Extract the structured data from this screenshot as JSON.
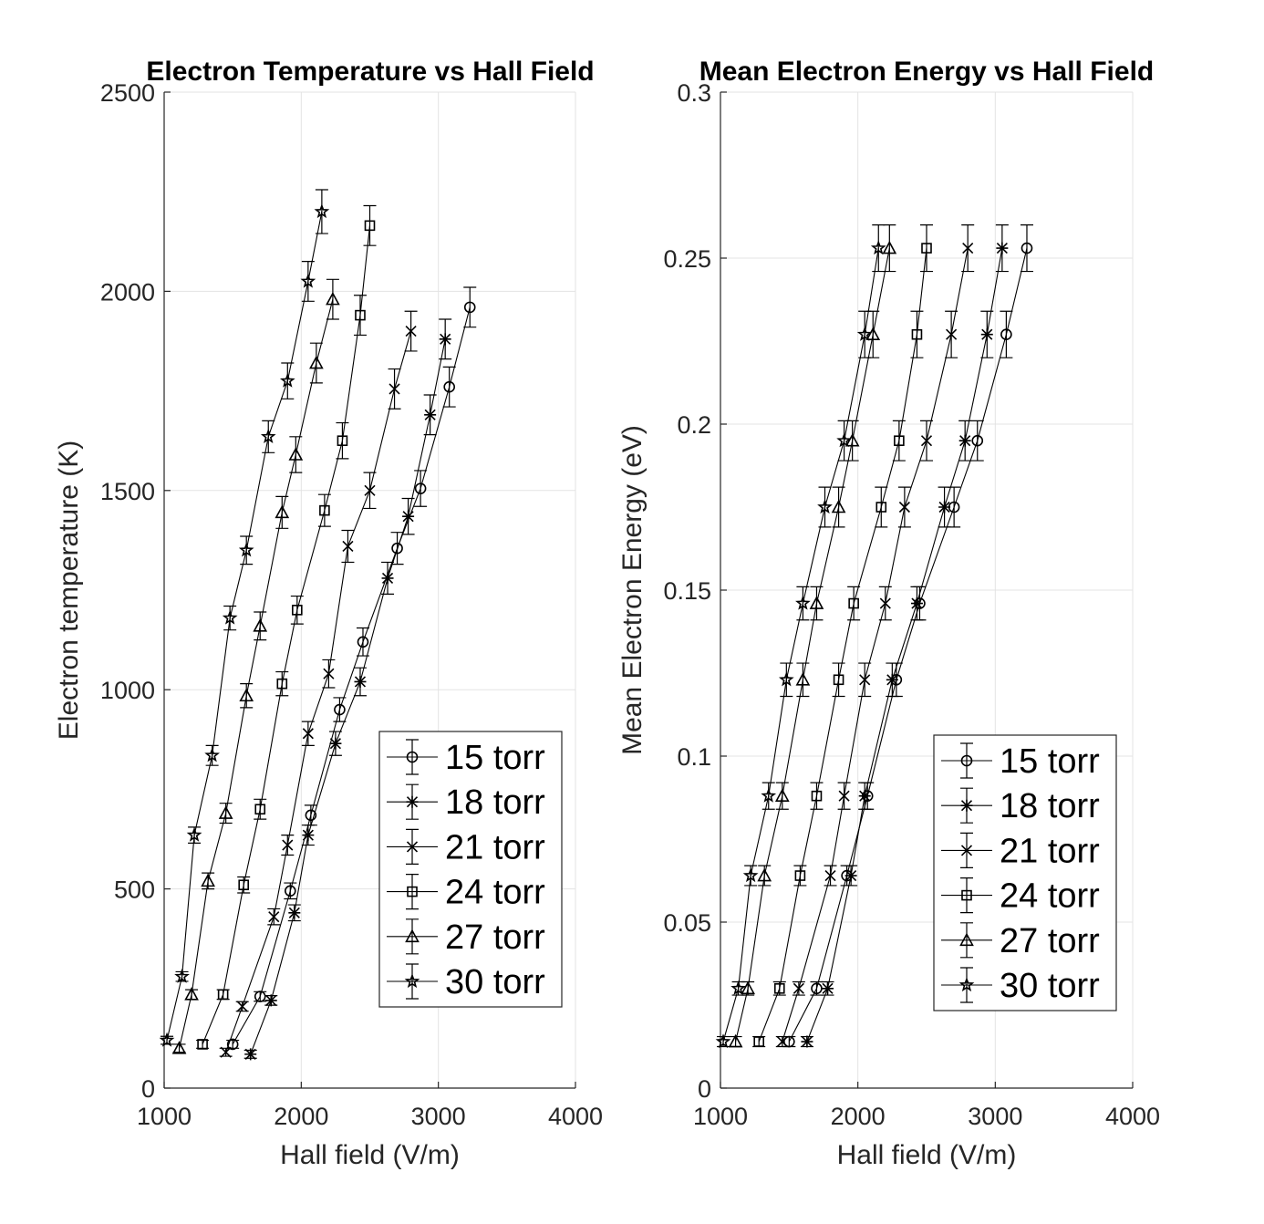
{
  "chart_data": [
    {
      "type": "scatter",
      "title": "Electron Temperature vs Hall Field",
      "xlabel": "Hall field (V/m)",
      "ylabel": "Electron temperature (K)",
      "xlim": [
        1000,
        4000
      ],
      "ylim": [
        0,
        2500
      ],
      "xticks": [
        "1000",
        "2000",
        "3000",
        "4000"
      ],
      "yticks": [
        "0",
        "500",
        "1000",
        "1500",
        "2000",
        "2500"
      ],
      "grid": true,
      "legend_position": "bottom-right",
      "series": [
        {
          "name": "15 torr",
          "marker": "circle",
          "x": [
            1500,
            1700,
            1920,
            2070,
            2280,
            2450,
            2700,
            2870,
            3080,
            3230
          ],
          "y": [
            110,
            230,
            495,
            685,
            950,
            1120,
            1355,
            1505,
            1760,
            1960
          ],
          "err": [
            10,
            12,
            20,
            25,
            30,
            35,
            40,
            45,
            50,
            50
          ]
        },
        {
          "name": "18 torr",
          "marker": "asterisk",
          "x": [
            1630,
            1780,
            1950,
            2050,
            2250,
            2430,
            2630,
            2780,
            2940,
            3050
          ],
          "y": [
            85,
            220,
            440,
            635,
            865,
            1020,
            1280,
            1435,
            1690,
            1880
          ],
          "err": [
            10,
            12,
            20,
            25,
            30,
            35,
            40,
            45,
            50,
            50
          ]
        },
        {
          "name": "21 torr",
          "marker": "x",
          "x": [
            1450,
            1570,
            1800,
            1900,
            2050,
            2200,
            2340,
            2500,
            2680,
            2800
          ],
          "y": [
            90,
            205,
            430,
            610,
            890,
            1040,
            1360,
            1500,
            1755,
            1900
          ],
          "err": [
            10,
            12,
            20,
            25,
            30,
            35,
            40,
            45,
            50,
            50
          ]
        },
        {
          "name": "24 torr",
          "marker": "square",
          "x": [
            1280,
            1430,
            1580,
            1700,
            1860,
            1970,
            2170,
            2300,
            2430,
            2500
          ],
          "y": [
            110,
            235,
            510,
            700,
            1015,
            1200,
            1450,
            1625,
            1940,
            2165
          ],
          "err": [
            10,
            12,
            20,
            25,
            30,
            35,
            40,
            45,
            50,
            50
          ]
        },
        {
          "name": "27 torr",
          "marker": "triangle",
          "x": [
            1110,
            1200,
            1320,
            1450,
            1600,
            1700,
            1860,
            1960,
            2110,
            2230
          ],
          "y": [
            100,
            235,
            520,
            690,
            985,
            1160,
            1445,
            1590,
            1820,
            1980
          ],
          "err": [
            10,
            12,
            20,
            25,
            30,
            35,
            40,
            45,
            50,
            50
          ]
        },
        {
          "name": "30 torr",
          "marker": "pentagram",
          "x": [
            1020,
            1130,
            1220,
            1350,
            1480,
            1600,
            1760,
            1900,
            2050,
            2150
          ],
          "y": [
            120,
            280,
            635,
            835,
            1180,
            1350,
            1635,
            1775,
            2025,
            2200
          ],
          "err": [
            10,
            12,
            20,
            25,
            30,
            35,
            40,
            45,
            50,
            55
          ]
        }
      ]
    },
    {
      "type": "scatter",
      "title": "Mean Electron Energy vs Hall Field",
      "xlabel": "Hall field (V/m)",
      "ylabel": "Mean Electron Energy (eV)",
      "xlim": [
        1000,
        4000
      ],
      "ylim": [
        0,
        0.3
      ],
      "xticks": [
        "1000",
        "2000",
        "3000",
        "4000"
      ],
      "yticks": [
        "0",
        "0.05",
        "0.1",
        "0.15",
        "0.2",
        "0.25",
        "0.3"
      ],
      "grid": true,
      "legend_position": "bottom-right",
      "series": [
        {
          "name": "15 torr",
          "marker": "circle",
          "x": [
            1500,
            1700,
            1920,
            2070,
            2280,
            2450,
            2700,
            2870,
            3080,
            3230
          ],
          "y": [
            0.014,
            0.03,
            0.064,
            0.088,
            0.123,
            0.146,
            0.175,
            0.195,
            0.227,
            0.253
          ],
          "err": [
            0.0015,
            0.002,
            0.003,
            0.004,
            0.005,
            0.005,
            0.006,
            0.006,
            0.007,
            0.007
          ]
        },
        {
          "name": "18 torr",
          "marker": "asterisk",
          "x": [
            1630,
            1780,
            1950,
            2050,
            2250,
            2430,
            2630,
            2780,
            2940,
            3050
          ],
          "y": [
            0.014,
            0.03,
            0.064,
            0.088,
            0.123,
            0.146,
            0.175,
            0.195,
            0.227,
            0.253
          ],
          "err": [
            0.0015,
            0.002,
            0.003,
            0.004,
            0.005,
            0.005,
            0.006,
            0.006,
            0.007,
            0.007
          ]
        },
        {
          "name": "21 torr",
          "marker": "x",
          "x": [
            1450,
            1570,
            1800,
            1900,
            2050,
            2200,
            2340,
            2500,
            2680,
            2800
          ],
          "y": [
            0.014,
            0.03,
            0.064,
            0.088,
            0.123,
            0.146,
            0.175,
            0.195,
            0.227,
            0.253
          ],
          "err": [
            0.0015,
            0.002,
            0.003,
            0.004,
            0.005,
            0.005,
            0.006,
            0.006,
            0.007,
            0.007
          ]
        },
        {
          "name": "24 torr",
          "marker": "square",
          "x": [
            1280,
            1430,
            1580,
            1700,
            1860,
            1970,
            2170,
            2300,
            2430,
            2500
          ],
          "y": [
            0.014,
            0.03,
            0.064,
            0.088,
            0.123,
            0.146,
            0.175,
            0.195,
            0.227,
            0.253
          ],
          "err": [
            0.0015,
            0.002,
            0.003,
            0.004,
            0.005,
            0.005,
            0.006,
            0.006,
            0.007,
            0.007
          ]
        },
        {
          "name": "27 torr",
          "marker": "triangle",
          "x": [
            1110,
            1200,
            1320,
            1450,
            1600,
            1700,
            1860,
            1960,
            2110,
            2230
          ],
          "y": [
            0.014,
            0.03,
            0.064,
            0.088,
            0.123,
            0.146,
            0.175,
            0.195,
            0.227,
            0.253
          ],
          "err": [
            0.0015,
            0.002,
            0.003,
            0.004,
            0.005,
            0.005,
            0.006,
            0.006,
            0.007,
            0.007
          ]
        },
        {
          "name": "30 torr",
          "marker": "pentagram",
          "x": [
            1020,
            1130,
            1220,
            1350,
            1480,
            1600,
            1760,
            1900,
            2050,
            2150
          ],
          "y": [
            0.014,
            0.03,
            0.064,
            0.088,
            0.123,
            0.146,
            0.175,
            0.195,
            0.227,
            0.253
          ],
          "err": [
            0.0015,
            0.002,
            0.003,
            0.004,
            0.005,
            0.005,
            0.006,
            0.006,
            0.007,
            0.007
          ]
        }
      ]
    }
  ]
}
